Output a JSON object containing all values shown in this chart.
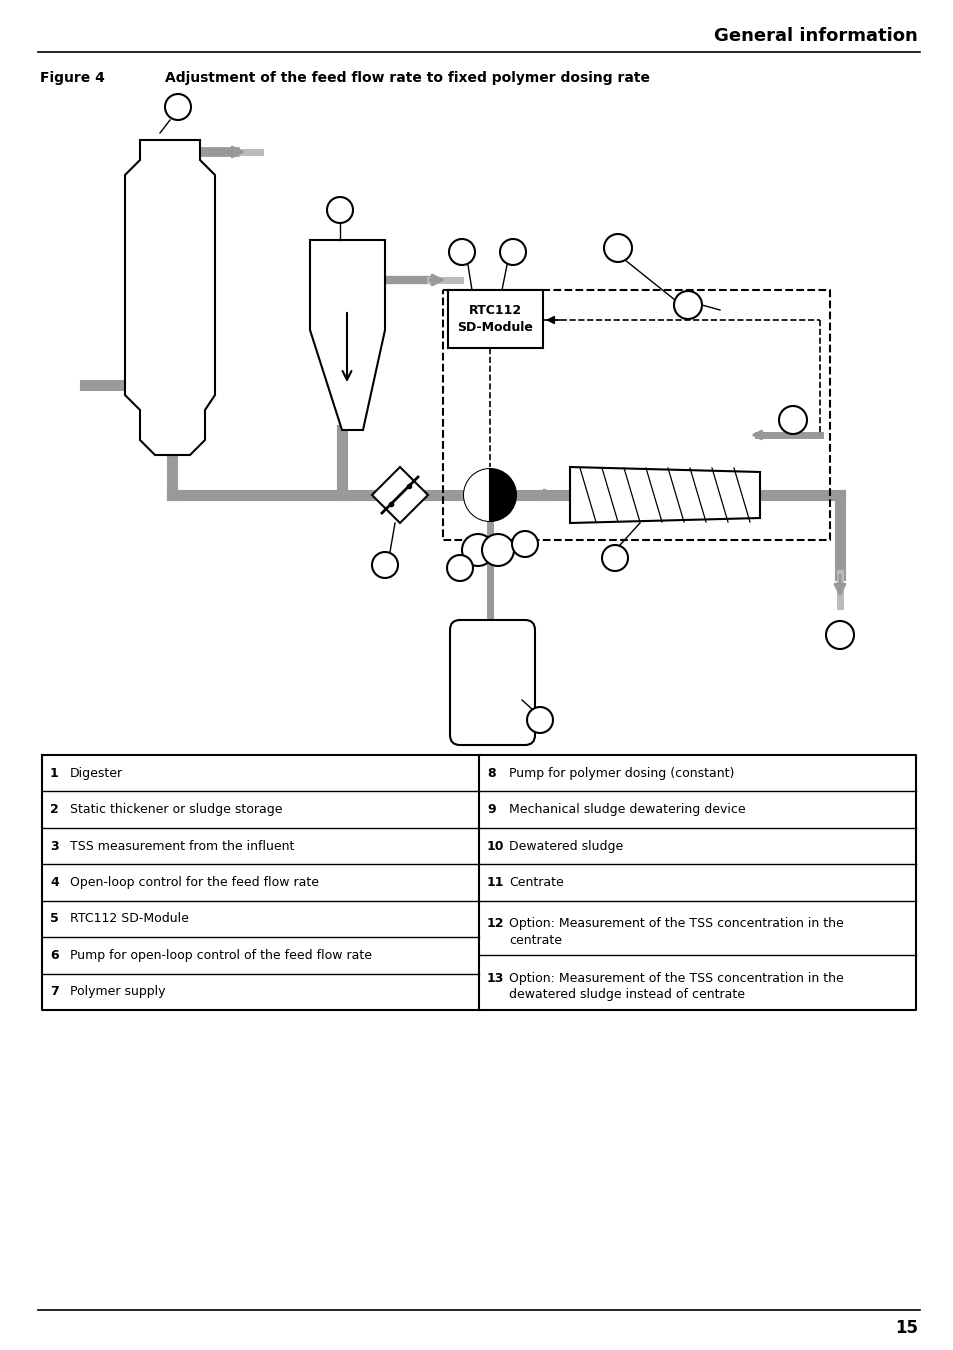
{
  "title_right": "General information",
  "figure_label": "Figure 4",
  "figure_caption": "Adjustment of the feed flow rate to fixed polymer dosing rate",
  "page_number": "15",
  "table_entries_left": [
    {
      "num": "1",
      "text": "Digester"
    },
    {
      "num": "2",
      "text": "Static thickener or sludge storage"
    },
    {
      "num": "3",
      "text": "TSS measurement from the influent"
    },
    {
      "num": "4",
      "text": "Open-loop control for the feed flow rate"
    },
    {
      "num": "5",
      "text": "RTC112 SD-Module"
    },
    {
      "num": "6",
      "text": "Pump for open-loop control of the feed flow rate"
    },
    {
      "num": "7",
      "text": "Polymer supply"
    }
  ],
  "table_entries_right": [
    {
      "num": "8",
      "text": "Pump for polymer dosing (constant)",
      "lines": 1
    },
    {
      "num": "9",
      "text": "Mechanical sludge dewatering device",
      "lines": 1
    },
    {
      "num": "10",
      "text": "Dewatered sludge",
      "lines": 1
    },
    {
      "num": "11",
      "text": "Centrate",
      "lines": 1
    },
    {
      "num": "12",
      "text": "Option: Measurement of the TSS concentration in the centrate",
      "lines": 2
    },
    {
      "num": "13",
      "text": "Option: Measurement of the TSS concentration in the dewatered sludge instead of centrate",
      "lines": 2
    }
  ],
  "bg_color": "#ffffff",
  "black": "#000000",
  "gray": "#999999",
  "light_gray": "#bbbbbb"
}
